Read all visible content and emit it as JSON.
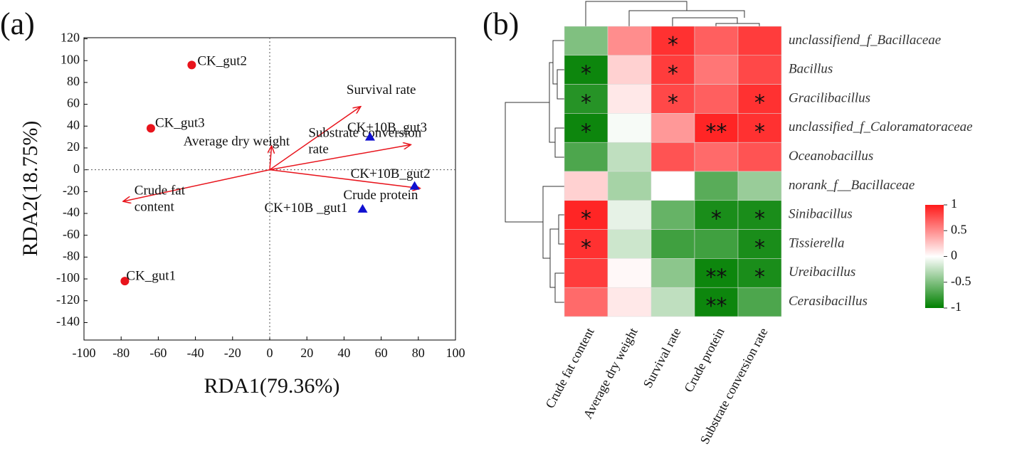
{
  "chart_data": [
    {
      "type": "biplot",
      "panel": "(a)",
      "xlabel": "RDA1(79.36%)",
      "ylabel": "RDA2(18.75%)",
      "xlim": [
        -100,
        100
      ],
      "xticks": [
        -100,
        -80,
        -60,
        -40,
        -20,
        0,
        20,
        40,
        60,
        80,
        100
      ],
      "ylim": [
        -156,
        121
      ],
      "yticks": [
        120,
        100,
        80,
        60,
        40,
        20,
        0,
        -20,
        -40,
        -60,
        -80,
        -100,
        -120,
        -140
      ],
      "points": [
        {
          "label": "CK_gut1",
          "x": -78,
          "y": -102,
          "color": "#e8141c",
          "marker": "circle"
        },
        {
          "label": "CK_gut2",
          "x": -42,
          "y": 96,
          "color": "#e8141c",
          "marker": "circle"
        },
        {
          "label": "CK_gut3",
          "x": -64,
          "y": 38,
          "color": "#e8141c",
          "marker": "circle"
        },
        {
          "label": "CK+10B _gut1",
          "x": 50,
          "y": -36,
          "color": "#1010d0",
          "marker": "triangle"
        },
        {
          "label": "CK+10B_gut2",
          "x": 78,
          "y": -15,
          "color": "#1010d0",
          "marker": "triangle"
        },
        {
          "label": "CK+10B_gut3",
          "x": 54,
          "y": 30,
          "color": "#1010d0",
          "marker": "triangle"
        }
      ],
      "vectors": [
        {
          "label_lines": [
            "Survival rate"
          ],
          "x": 49,
          "y": 58
        },
        {
          "label_lines": [
            "Average dry weight"
          ],
          "x": 1,
          "y": 22
        },
        {
          "label_lines": [
            "Substrate conversion",
            "rate"
          ],
          "x": 76,
          "y": 23
        },
        {
          "label_lines": [
            "Crude  protein"
          ],
          "x": 81,
          "y": -17
        },
        {
          "label_lines": [
            "Crude fat",
            "content"
          ],
          "x": -79,
          "y": -29
        }
      ],
      "vector_color": "#e8141c"
    },
    {
      "type": "heatmap",
      "panel": "(b)",
      "columns": [
        "Crude fat content",
        "Average dry weight",
        "Survival rate",
        "Crude protein",
        "Substrate conversion rate"
      ],
      "rows": [
        "unclassifiend_f_Bacillaceae",
        "Bacillus",
        "Gracilibacillus",
        "unclassified_f_Caloramatoraceae",
        "Oceanobacillus",
        "norank_f__Bacillaceae",
        "Sinibacillus",
        "Tissierella",
        "Ureibacillus",
        "Cerasibacillus"
      ],
      "values": [
        [
          -0.5,
          0.5,
          0.9,
          0.7,
          0.85
        ],
        [
          -0.95,
          0.2,
          0.85,
          0.6,
          0.8
        ],
        [
          -0.85,
          0.1,
          0.8,
          0.7,
          0.9
        ],
        [
          -0.95,
          -0.03,
          0.45,
          0.95,
          0.9
        ],
        [
          -0.7,
          -0.25,
          0.75,
          0.65,
          0.75
        ],
        [
          0.2,
          -0.35,
          0,
          -0.65,
          -0.4
        ],
        [
          0.95,
          -0.1,
          -0.6,
          -0.9,
          -0.9
        ],
        [
          0.9,
          -0.2,
          -0.75,
          -0.75,
          -0.9
        ],
        [
          0.85,
          0.03,
          -0.45,
          -0.95,
          -0.9
        ],
        [
          0.65,
          0.1,
          -0.25,
          -0.95,
          -0.7
        ]
      ],
      "significance": [
        [
          null,
          null,
          "*",
          null,
          null
        ],
        [
          "*",
          null,
          "*",
          null,
          null
        ],
        [
          "*",
          null,
          "*",
          null,
          "*"
        ],
        [
          "*",
          null,
          null,
          "**",
          "*"
        ],
        [
          null,
          null,
          null,
          null,
          null
        ],
        [
          null,
          null,
          null,
          null,
          null
        ],
        [
          "*",
          null,
          null,
          "*",
          "*"
        ],
        [
          "*",
          null,
          null,
          null,
          "*"
        ],
        [
          null,
          null,
          null,
          "**",
          "*"
        ],
        [
          null,
          null,
          null,
          "**",
          null
        ]
      ],
      "zlim": [
        -1,
        1
      ],
      "colorbar_ticks": [
        1,
        0.5,
        0,
        -0.5,
        -1
      ],
      "colorscale": {
        "low": "#008000",
        "mid": "#ffffff",
        "high": "#ff1a1a"
      }
    }
  ]
}
